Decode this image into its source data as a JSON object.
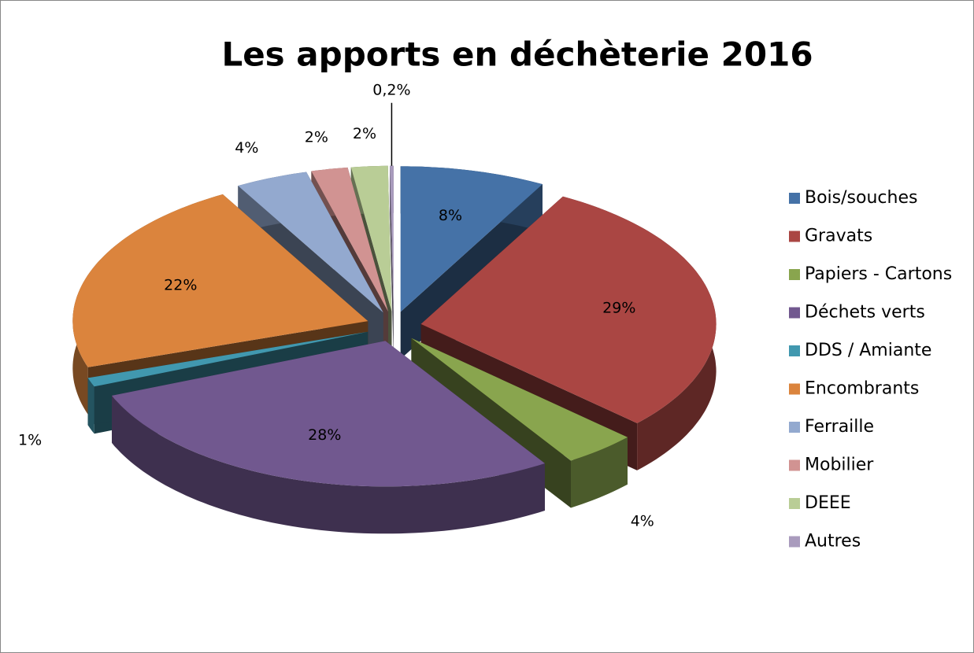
{
  "chart_data": {
    "type": "pie",
    "title": "Les apports en déchèterie 2016",
    "categories": [
      "Bois/souches",
      "Gravats",
      "Papiers - Cartons",
      "Déchets verts",
      "DDS / Amiante",
      "Encombrants",
      "Ferraille",
      "Mobilier",
      "DEEE",
      "Autres"
    ],
    "values": [
      8,
      29,
      4,
      28,
      1,
      22,
      4,
      2,
      2,
      0.2
    ],
    "value_labels": [
      "8%",
      "29%",
      "4%",
      "28%",
      "1%",
      "22%",
      "4%",
      "2%",
      "2%",
      "0,2%"
    ],
    "colors": [
      "#4572a7",
      "#aa4643",
      "#89a54e",
      "#71588f",
      "#4198af",
      "#db843d",
      "#93a9cf",
      "#d19392",
      "#b9cd96",
      "#a99bbd"
    ],
    "legend": "right"
  }
}
